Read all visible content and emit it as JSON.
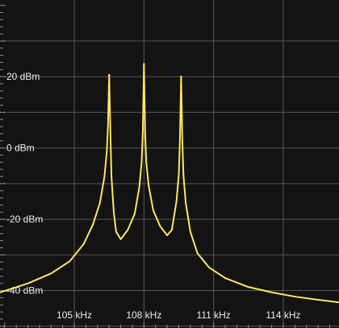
{
  "chart_data": {
    "type": "line",
    "title": "",
    "xlabel": "",
    "ylabel": "",
    "x_unit": "kHz",
    "y_unit": "dBm",
    "xlim": [
      101.8,
      116.4
    ],
    "ylim": [
      -50.5,
      41.5
    ],
    "grid": true,
    "background_color": "#131313",
    "grid_color": "#555555",
    "line_color": "#ffe45e",
    "x_ticks": [
      {
        "value": 105,
        "label": "105 kHz"
      },
      {
        "value": 108,
        "label": "108 kHz"
      },
      {
        "value": 111,
        "label": "111 kHz"
      },
      {
        "value": 114,
        "label": "114 kHz"
      }
    ],
    "y_ticks": [
      {
        "value": 20,
        "label": "20 dBm"
      },
      {
        "value": 0,
        "label": "0 dBm"
      },
      {
        "value": -20,
        "label": "-20 dBm"
      },
      {
        "value": -40,
        "label": "-40 dBm"
      }
    ],
    "extra_gridlines_y": [
      30,
      10,
      -10,
      -30,
      -50
    ],
    "peaks": [
      {
        "x": 106.5,
        "y": 20.5
      },
      {
        "x": 108.0,
        "y": 23.5
      },
      {
        "x": 109.6,
        "y": 20.0
      }
    ],
    "series": [
      {
        "x": [
          101.8,
          103.0,
          104.0,
          104.8,
          105.4,
          105.8,
          106.1,
          106.3,
          106.4,
          106.45,
          106.5,
          106.55,
          106.6,
          106.7,
          106.8,
          107.0,
          107.3,
          107.6,
          107.8,
          107.9,
          107.95,
          108.0,
          108.05,
          108.1,
          108.2,
          108.4,
          108.7,
          109.0,
          109.2,
          109.4,
          109.5,
          109.55,
          109.6,
          109.65,
          109.7,
          109.8,
          110.0,
          110.3,
          110.8,
          111.5,
          112.5,
          113.5,
          114.5,
          115.5,
          116.4
        ],
        "y": [
          -40.5,
          -38.0,
          -35.2,
          -31.8,
          -27.0,
          -21.5,
          -15.5,
          -8.0,
          -1.0,
          6.0,
          20.5,
          6.0,
          -8.0,
          -18.0,
          -23.5,
          -25.6,
          -23.0,
          -18.5,
          -11.0,
          -4.0,
          4.5,
          23.5,
          4.5,
          -4.0,
          -10.5,
          -17.5,
          -22.0,
          -24.5,
          -23.0,
          -15.0,
          -7.5,
          2.5,
          20.0,
          2.5,
          -7.5,
          -15.5,
          -23.5,
          -29.5,
          -33.5,
          -36.5,
          -39.0,
          -40.5,
          -41.7,
          -42.6,
          -43.3
        ]
      }
    ]
  }
}
